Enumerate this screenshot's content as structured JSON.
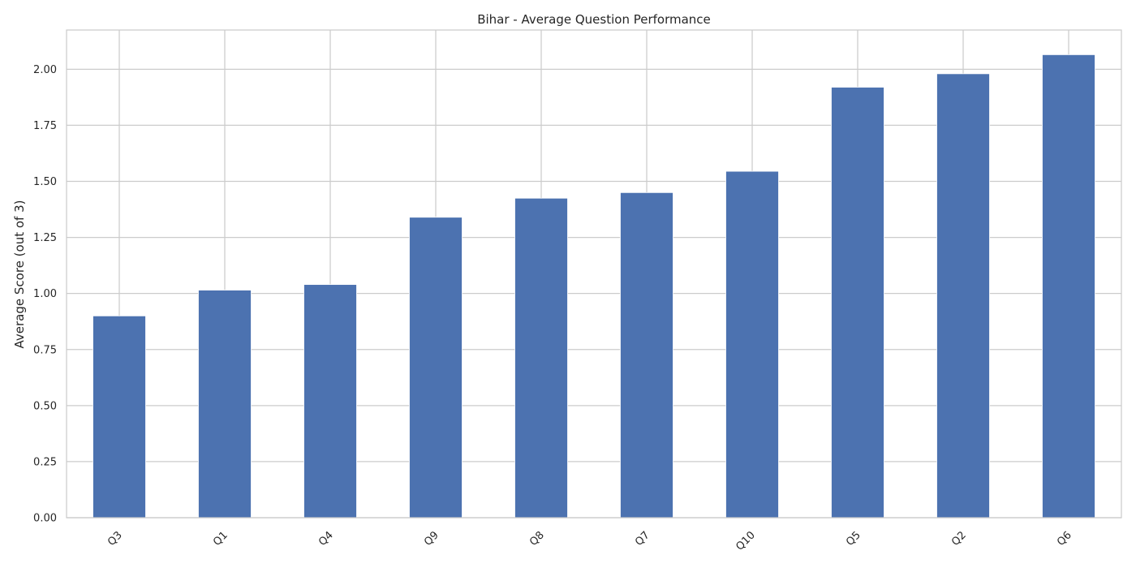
{
  "chart_data": {
    "type": "bar",
    "title": "Bihar - Average Question Performance",
    "xlabel": "",
    "ylabel": "Average Score (out of 3)",
    "categories": [
      "Q3",
      "Q1",
      "Q4",
      "Q9",
      "Q8",
      "Q7",
      "Q10",
      "Q5",
      "Q2",
      "Q6"
    ],
    "values": [
      0.9,
      1.015,
      1.04,
      1.34,
      1.425,
      1.45,
      1.545,
      1.92,
      1.98,
      2.065
    ],
    "ylim": [
      0,
      2.175
    ],
    "yticks": [
      0.0,
      0.25,
      0.5,
      0.75,
      1.0,
      1.25,
      1.5,
      1.75,
      2.0
    ],
    "ytick_labels": [
      "0.00",
      "0.25",
      "0.50",
      "0.75",
      "1.00",
      "1.25",
      "1.50",
      "1.75",
      "2.00"
    ],
    "grid": true,
    "legend": "none",
    "colors": {
      "bar": "#4c72b0",
      "grid": "#cccccc",
      "frame": "#cccccc",
      "text": "#262626",
      "background": "#ffffff"
    }
  }
}
